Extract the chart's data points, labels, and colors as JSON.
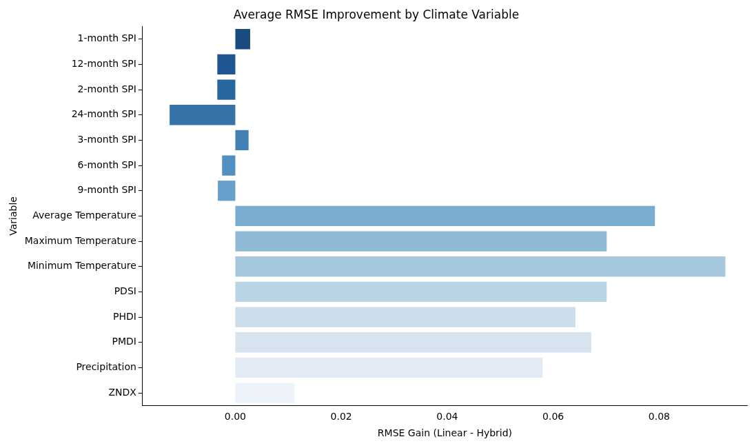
{
  "chart_data": {
    "type": "bar",
    "orientation": "horizontal",
    "title": "Average RMSE Improvement by Climate Variable",
    "xlabel": "RMSE Gain (Linear - Hybrid)",
    "ylabel": "Variable",
    "categories": [
      "1-month SPI",
      "12-month SPI",
      "2-month SPI",
      "24-month SPI",
      "3-month SPI",
      "6-month SPI",
      "9-month SPI",
      "Average Temperature",
      "Maximum Temperature",
      "Minimum Temperature",
      "PDSI",
      "PHDI",
      "PMDI",
      "Precipitation",
      "ZNDX"
    ],
    "values": [
      0.0028,
      -0.0034,
      -0.0034,
      -0.0124,
      0.0025,
      -0.0025,
      -0.0033,
      0.0792,
      0.0701,
      0.0925,
      0.0701,
      0.0642,
      0.0672,
      0.058,
      0.0112
    ],
    "colors": [
      "#1a4b80",
      "#1f5591",
      "#2866a0",
      "#3573a9",
      "#4181b6",
      "#5290c1",
      "#66a0cb",
      "#79acce",
      "#8fbad6",
      "#a6c8dc",
      "#b9d4e4",
      "#cbdcea",
      "#d7e4f0",
      "#e2ebf5",
      "#eef3fa"
    ],
    "xlim": [
      -0.0175,
      0.0966
    ],
    "xticks": [
      {
        "value": 0,
        "label": "0.00"
      },
      {
        "value": 0.02,
        "label": "0.02"
      },
      {
        "value": 0.04,
        "label": "0.04"
      },
      {
        "value": 0.06,
        "label": "0.06"
      },
      {
        "value": 0.08,
        "label": "0.08"
      }
    ],
    "grid": false,
    "legend": false
  }
}
